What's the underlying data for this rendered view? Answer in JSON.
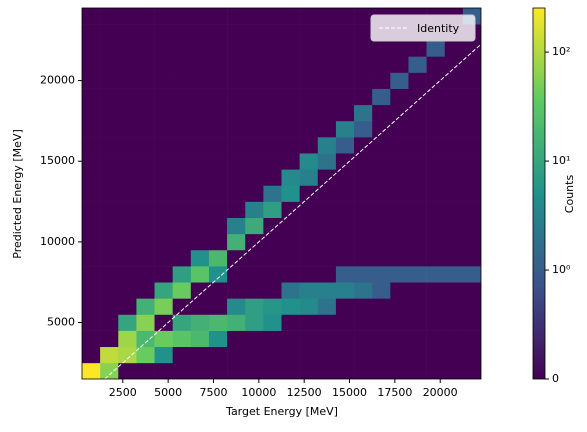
{
  "chart_data": {
    "type": "heatmap",
    "xlabel": "Target Energy [MeV]",
    "ylabel": "Predicted Energy [MeV]",
    "colorbar_label": "Counts",
    "color_scale": "symlog",
    "colormap": [
      "#440154",
      "#3b528b",
      "#21918c",
      "#5ec962",
      "#fde725"
    ],
    "clim": [
      0,
      254
    ],
    "cticks": [
      0,
      {
        "value": 1,
        "label": "10⁰"
      },
      {
        "value": 10,
        "label": "10¹"
      },
      {
        "value": 100,
        "label": "10²"
      }
    ],
    "xlim": [
      250,
      22250
    ],
    "ylim": [
      1500,
      24500
    ],
    "xticks": [
      2500,
      5000,
      7500,
      10000,
      12500,
      15000,
      17500,
      20000
    ],
    "yticks": [
      5000,
      10000,
      15000,
      20000
    ],
    "xbins": [
      250,
      1250,
      2250,
      3250,
      4250,
      5250,
      6250,
      7250,
      8250,
      9250,
      10250,
      11250,
      12250,
      13250,
      14250,
      15250,
      16250,
      17250,
      18250,
      19250,
      20250,
      21250,
      22250
    ],
    "ybins": [
      1500,
      2500,
      3500,
      4500,
      5500,
      6500,
      7500,
      8500,
      9500,
      10500,
      11500,
      12500,
      13500,
      14500,
      15500,
      16500,
      17500,
      18500,
      19500,
      20500,
      21500,
      22500,
      23500,
      24500
    ],
    "counts": [
      [
        250,
        60,
        0,
        0,
        0,
        0,
        0,
        0,
        0,
        0,
        0,
        0,
        0,
        0,
        0,
        0,
        0,
        0,
        0,
        0,
        0,
        0
      ],
      [
        0,
        120,
        90,
        40,
        5,
        0,
        0,
        0,
        0,
        0,
        0,
        0,
        0,
        0,
        0,
        0,
        0,
        0,
        0,
        0,
        0,
        0
      ],
      [
        0,
        0,
        80,
        20,
        40,
        30,
        20,
        5,
        0,
        0,
        0,
        0,
        0,
        0,
        0,
        0,
        0,
        0,
        0,
        0,
        0,
        0
      ],
      [
        0,
        0,
        10,
        60,
        0,
        10,
        15,
        20,
        15,
        8,
        5,
        0,
        0,
        0,
        0,
        0,
        0,
        0,
        0,
        0,
        0,
        0
      ],
      [
        0,
        0,
        0,
        15,
        50,
        0,
        0,
        0,
        4,
        8,
        6,
        5,
        4,
        2,
        0,
        0,
        0,
        0,
        0,
        0,
        0,
        0
      ],
      [
        0,
        0,
        0,
        0,
        10,
        40,
        0,
        0,
        0,
        0,
        0,
        2,
        3,
        3,
        3,
        2,
        1,
        0,
        0,
        0,
        0,
        0
      ],
      [
        0,
        0,
        0,
        0,
        0,
        8,
        30,
        5,
        0,
        0,
        0,
        0,
        0,
        0,
        1,
        1,
        1,
        1,
        1,
        1,
        1,
        1
      ],
      [
        0,
        0,
        0,
        0,
        0,
        0,
        5,
        20,
        0,
        0,
        0,
        0,
        0,
        0,
        0,
        0,
        0,
        0,
        0,
        0,
        0,
        0
      ],
      [
        0,
        0,
        0,
        0,
        0,
        0,
        0,
        0,
        15,
        0,
        0,
        0,
        0,
        0,
        0,
        0,
        0,
        0,
        0,
        0,
        0,
        0
      ],
      [
        0,
        0,
        0,
        0,
        0,
        0,
        0,
        0,
        3,
        12,
        0,
        0,
        0,
        0,
        0,
        0,
        0,
        0,
        0,
        0,
        0,
        0
      ],
      [
        0,
        0,
        0,
        0,
        0,
        0,
        0,
        0,
        0,
        3,
        8,
        0,
        0,
        0,
        0,
        0,
        0,
        0,
        0,
        0,
        0,
        0
      ],
      [
        0,
        0,
        0,
        0,
        0,
        0,
        0,
        0,
        0,
        0,
        2,
        5,
        0,
        0,
        0,
        0,
        0,
        0,
        0,
        0,
        0,
        0
      ],
      [
        0,
        0,
        0,
        0,
        0,
        0,
        0,
        0,
        0,
        0,
        0,
        4,
        3,
        0,
        0,
        0,
        0,
        0,
        0,
        0,
        0,
        0
      ],
      [
        0,
        0,
        0,
        0,
        0,
        0,
        0,
        0,
        0,
        0,
        0,
        0,
        4,
        2,
        0,
        0,
        0,
        0,
        0,
        0,
        0,
        0
      ],
      [
        0,
        0,
        0,
        0,
        0,
        0,
        0,
        0,
        0,
        0,
        0,
        0,
        0,
        3,
        1,
        0,
        0,
        0,
        0,
        0,
        0,
        0
      ],
      [
        0,
        0,
        0,
        0,
        0,
        0,
        0,
        0,
        0,
        0,
        0,
        0,
        0,
        0,
        3,
        1,
        0,
        0,
        0,
        0,
        0,
        0
      ],
      [
        0,
        0,
        0,
        0,
        0,
        0,
        0,
        0,
        0,
        0,
        0,
        0,
        0,
        0,
        0,
        2,
        0,
        0,
        0,
        0,
        0,
        0
      ],
      [
        0,
        0,
        0,
        0,
        0,
        0,
        0,
        0,
        0,
        0,
        0,
        0,
        0,
        0,
        0,
        0,
        1,
        0,
        0,
        0,
        0,
        0
      ],
      [
        0,
        0,
        0,
        0,
        0,
        0,
        0,
        0,
        0,
        0,
        0,
        0,
        0,
        0,
        0,
        0,
        0,
        1,
        0,
        0,
        0,
        0
      ],
      [
        0,
        0,
        0,
        0,
        0,
        0,
        0,
        0,
        0,
        0,
        0,
        0,
        0,
        0,
        0,
        0,
        0,
        0,
        1,
        0,
        0,
        0
      ],
      [
        0,
        0,
        0,
        0,
        0,
        0,
        0,
        0,
        0,
        0,
        0,
        0,
        0,
        0,
        0,
        0,
        0,
        0,
        0,
        1,
        0,
        0
      ],
      [
        0,
        0,
        0,
        0,
        0,
        0,
        0,
        0,
        0,
        0,
        0,
        0,
        0,
        0,
        0,
        0,
        0,
        0,
        0,
        0,
        0,
        0
      ],
      [
        0,
        0,
        0,
        0,
        0,
        0,
        0,
        0,
        0,
        0,
        0,
        0,
        0,
        0,
        0,
        0,
        0,
        0,
        0,
        0,
        0,
        1
      ]
    ],
    "reference_line": {
      "name": "Identity",
      "color": "#ffffff"
    },
    "legend": "upper right"
  }
}
